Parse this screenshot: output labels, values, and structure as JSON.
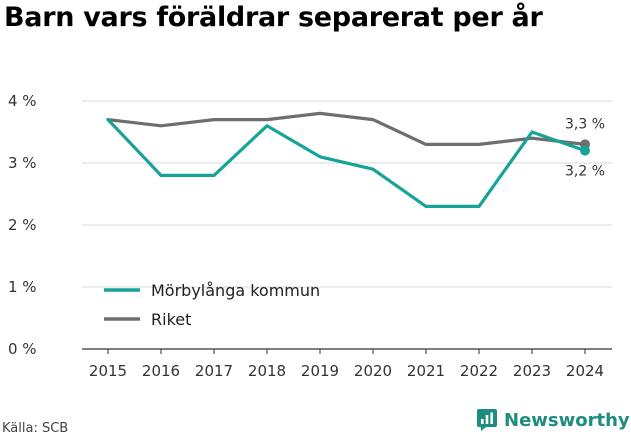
{
  "title": "Barn vars föräldrar separerat per år",
  "source": "Källa: SCB",
  "brand": {
    "name": "Newsworthy",
    "icon": "newsworthy-logo-icon",
    "color": "#1e8c7e"
  },
  "chart_data": {
    "type": "line",
    "title": "Barn vars föräldrar separerat per år",
    "x": [
      "2015",
      "2016",
      "2017",
      "2018",
      "2019",
      "2020",
      "2021",
      "2022",
      "2023",
      "2024"
    ],
    "ylim": [
      0,
      4
    ],
    "yticks": [
      0,
      1,
      2,
      3,
      4
    ],
    "ytick_labels": [
      "0 %",
      "1 %",
      "2 %",
      "3 %",
      "4 %"
    ],
    "grid": "horizontal",
    "legend_position": "bottom-left",
    "series": [
      {
        "name": "Mörbylånga kommun",
        "color": "#17a398",
        "values": [
          3.7,
          2.8,
          2.8,
          3.6,
          3.1,
          2.9,
          2.3,
          2.3,
          3.5,
          3.2
        ],
        "end_label": "3,2 %"
      },
      {
        "name": "Riket",
        "color": "#6e6e6e",
        "values": [
          3.7,
          3.6,
          3.7,
          3.7,
          3.8,
          3.7,
          3.3,
          3.3,
          3.4,
          3.3
        ],
        "end_label": "3,3 %"
      }
    ]
  }
}
